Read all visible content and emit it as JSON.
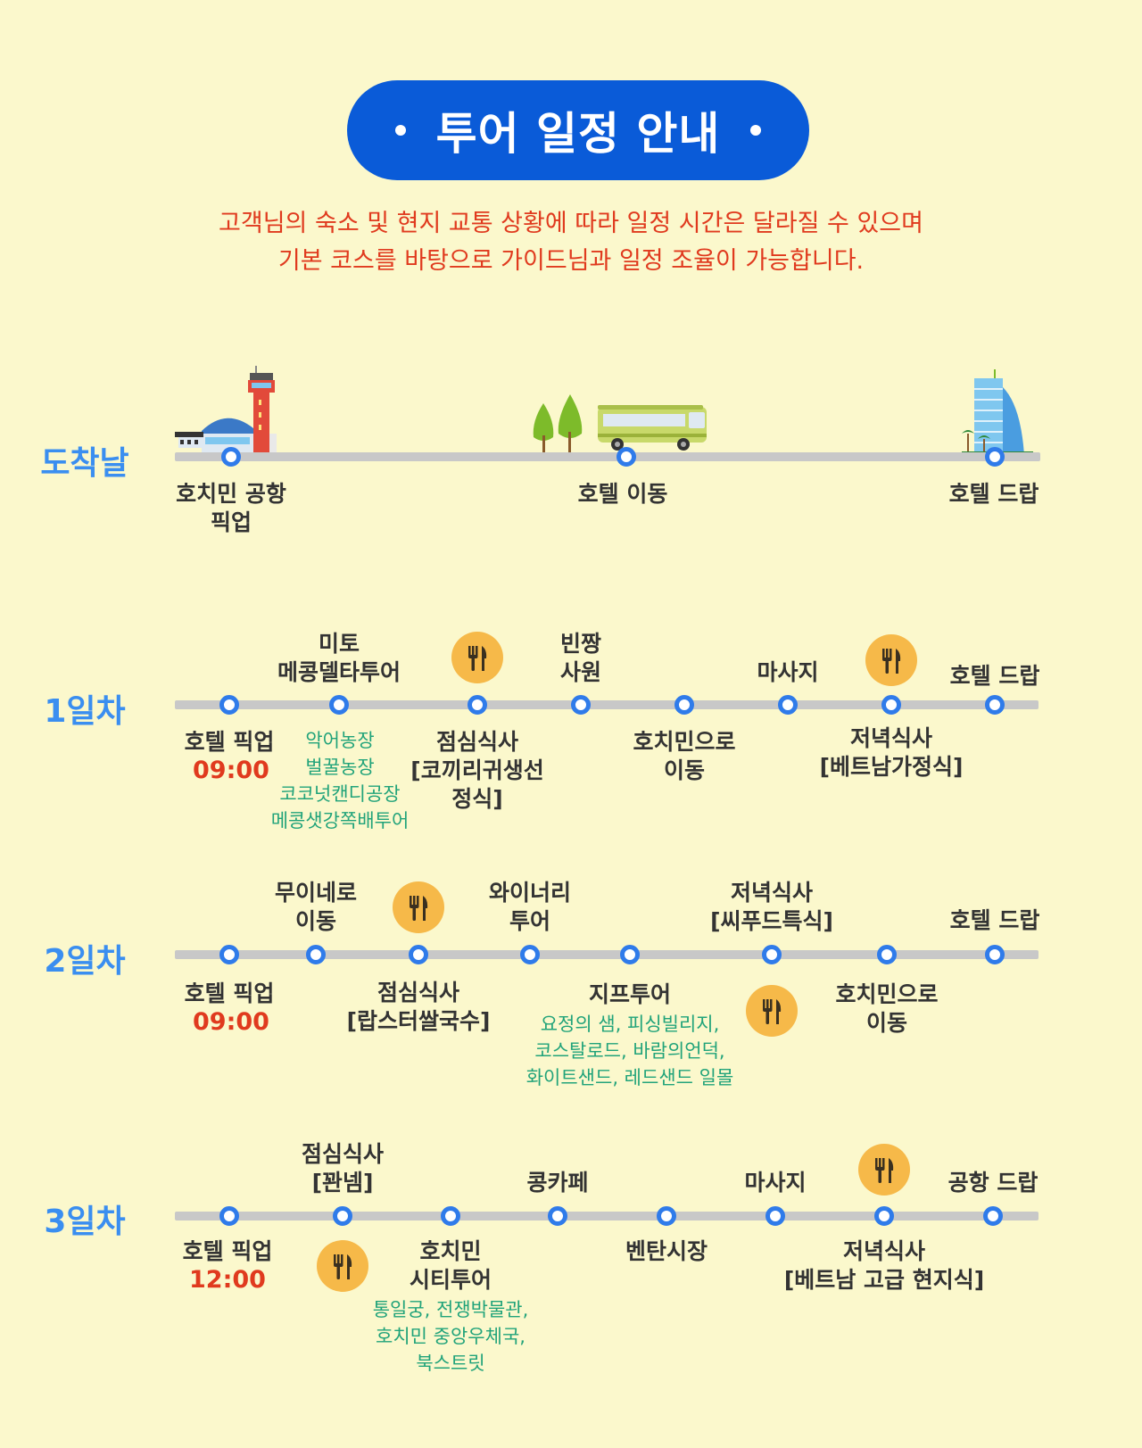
{
  "title": "투어 일정 안내",
  "notice": {
    "line1": "고객님의 숙소 및 현지 교통 상황에 따라 일정 시간은 달라질 수 있으며",
    "line2": "기본 코스를 바탕으로 가이드님과 일정 조율이 가능합니다."
  },
  "colors": {
    "accent": "#0a5bd8",
    "day_label": "#3a8ef0",
    "time": "#e03a1e",
    "sub": "#21a37a",
    "meal": "#f6b949",
    "background": "#fbf8cc"
  },
  "days": [
    {
      "label": "도착날",
      "stops": [
        {
          "name": "호치민 공항\n픽업"
        },
        {
          "name": "호텔 이동"
        },
        {
          "name": "호텔 드랍"
        }
      ],
      "icons": [
        "airport-icon",
        "trees-icon",
        "bus-icon",
        "hotel-icon"
      ]
    },
    {
      "label": "1일차",
      "stops": [
        {
          "name": "호텔 픽업",
          "time": "09:00"
        },
        {
          "name": "미토\n메콩델타투어",
          "sub": "악어농장\n벌꿀농장\n코코넛캔디공장\n메콩샛강쪽배투어"
        },
        {
          "name": "점심식사\n[코끼리귀생선\n정식]"
        },
        {
          "name": "빈짱\n사원"
        },
        {
          "name": "호치민으로\n이동"
        },
        {
          "name": "마사지"
        },
        {
          "name": "저녁식사\n[베트남가정식]"
        },
        {
          "name": "호텔 드랍"
        }
      ]
    },
    {
      "label": "2일차",
      "stops": [
        {
          "name": "호텔 픽업",
          "time": "09:00"
        },
        {
          "name": "무이네로\n이동"
        },
        {
          "name": "점심식사\n[랍스터쌀국수]"
        },
        {
          "name": "와이너리\n투어"
        },
        {
          "name": "지프투어",
          "sub": "요정의 샘, 피싱빌리지,\n코스탈로드, 바람의언덕,\n화이트샌드, 레드샌드 일몰"
        },
        {
          "name": "저녁식사\n[씨푸드특식]"
        },
        {
          "name": "호치민으로\n이동"
        },
        {
          "name": "호텔 드랍"
        }
      ]
    },
    {
      "label": "3일차",
      "stops": [
        {
          "name": "호텔 픽업",
          "time": "12:00"
        },
        {
          "name": "점심식사\n[꽌넴]"
        },
        {
          "name": "호치민\n시티투어",
          "sub": "통일궁, 전쟁박물관,\n호치민 중앙우체국,\n북스트릿"
        },
        {
          "name": "콩카페"
        },
        {
          "name": "벤탄시장"
        },
        {
          "name": "마사지"
        },
        {
          "name": "저녁식사\n[베트남 고급 현지식]"
        },
        {
          "name": "공항 드랍"
        }
      ]
    }
  ],
  "meal_icon": "fork-knife-icon"
}
